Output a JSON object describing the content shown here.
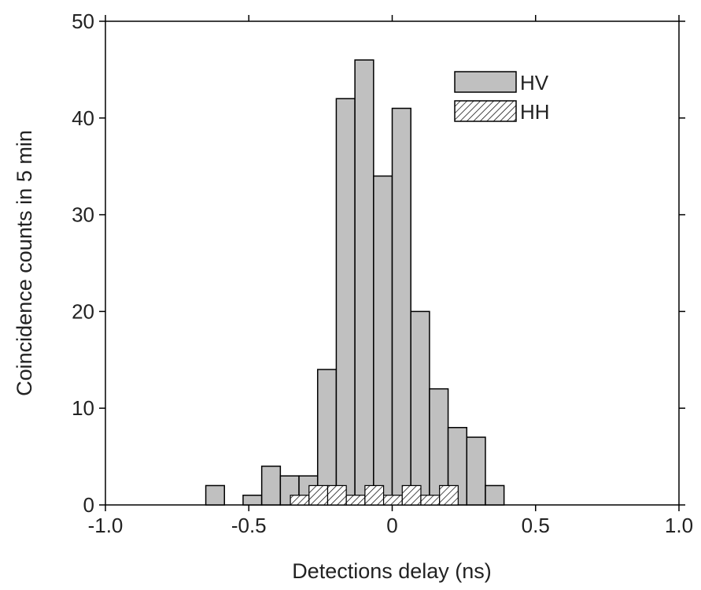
{
  "chart_data": {
    "type": "bar",
    "title": "",
    "xlabel": "Detections delay (ns)",
    "ylabel": "Coincidence counts in 5 min",
    "xlim": [
      -1.0,
      1.0
    ],
    "ylim": [
      0,
      50
    ],
    "bin_width": 0.065,
    "x_ticks": [
      "-1.0",
      "-0.5",
      "0",
      "0.5",
      "1.0"
    ],
    "y_ticks": [
      "0",
      "10",
      "20",
      "30",
      "40",
      "50"
    ],
    "legend_position": "top-right",
    "colors": {
      "HV": "#c0c0c0",
      "HH": "#ffffff",
      "edge": "#000000"
    },
    "series": [
      {
        "name": "HV",
        "style": "solid-gray",
        "x": [
          -0.65,
          -0.52,
          -0.455,
          -0.39,
          -0.325,
          -0.26,
          -0.195,
          -0.13,
          -0.065,
          0.0,
          0.065,
          0.13,
          0.195,
          0.26,
          0.325,
          0.39
        ],
        "values": [
          2,
          1,
          4,
          3,
          3,
          14,
          42,
          46,
          34,
          41,
          20,
          12,
          8,
          7,
          2,
          0
        ]
      },
      {
        "name": "HH",
        "style": "hatched",
        "x": [
          -0.355,
          -0.29,
          -0.225,
          -0.16,
          -0.095,
          -0.03,
          0.035,
          0.1,
          0.165
        ],
        "values": [
          1,
          2,
          2,
          1,
          2,
          1,
          2,
          1,
          2
        ]
      }
    ]
  }
}
